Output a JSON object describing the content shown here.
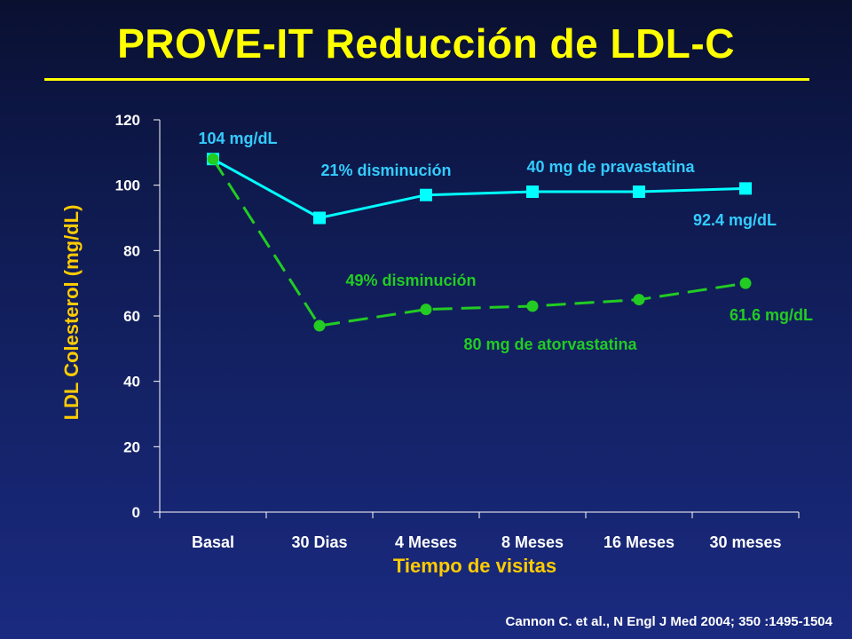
{
  "title": "PROVE-IT Reducción de LDL-C",
  "citation": "Cannon C. et al., N Engl J Med 2004; 350 :1495-1504",
  "colors": {
    "title": "#ffff00",
    "pravastatin": "#00ffff",
    "pravastatin_label": "#33ccff",
    "atorvastatin": "#22cc22",
    "axis_title": "#ffcc00",
    "axis": "#ffffff"
  },
  "chart_data": {
    "type": "line",
    "categories": [
      "Basal",
      "30 Dias",
      "4 Meses",
      "8 Meses",
      "16 Meses",
      "30 meses"
    ],
    "xlabel": "Tiempo de visitas",
    "ylabel": "LDL Colesterol (mg/dL)",
    "ylim": [
      0,
      120
    ],
    "yticks": [
      0,
      20,
      40,
      60,
      80,
      100,
      120
    ],
    "grid": false,
    "series": [
      {
        "name": "40 mg de pravastatina",
        "marker": "square",
        "line_style": "solid",
        "values": [
          108,
          90,
          97,
          98,
          98,
          99
        ]
      },
      {
        "name": "80 mg de atorvastatina",
        "marker": "circle",
        "line_style": "dashed",
        "values": [
          108,
          57,
          62,
          63,
          65,
          70
        ]
      }
    ],
    "annotations": [
      {
        "text": "104 mg/dL",
        "series": 0
      },
      {
        "text": "21% disminución",
        "series": 0
      },
      {
        "text": "92.4 mg/dL",
        "series": 0
      },
      {
        "text": "49% disminución",
        "series": 1
      },
      {
        "text": "61.6 mg/dL",
        "series": 1
      }
    ]
  }
}
